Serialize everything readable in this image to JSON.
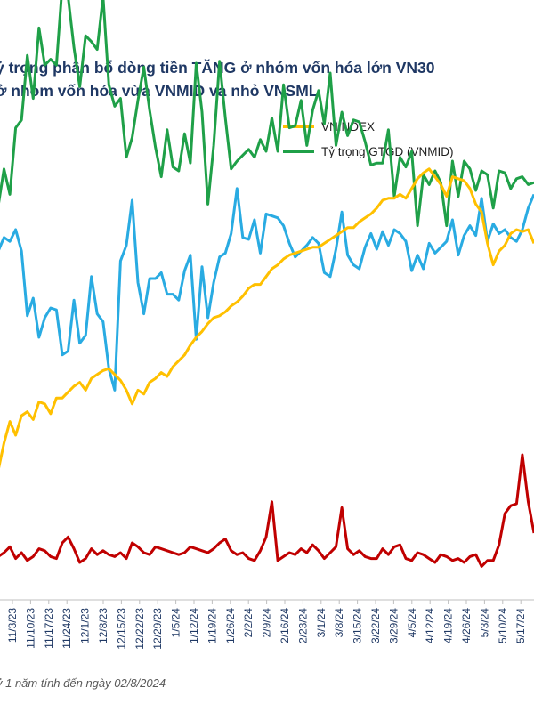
{
  "chart_data": {
    "type": "line",
    "title_lines": [
      "ỷ trọng phân bổ dòng tiền TĂNG ở nhóm vốn hóa lớn VN30",
      "ở nhóm vốn hóa vừa VNMID và nhỏ VNSML"
    ],
    "legend": [
      {
        "name": "VNINDEX",
        "color": "#ffc000"
      },
      {
        "name": "Tỷ trọng GTGD (VNMID)",
        "color": "#1fa048"
      }
    ],
    "x_tick_labels": [
      "11/3/23",
      "11/10/23",
      "11/17/23",
      "11/24/23",
      "12/1/23",
      "12/8/23",
      "12/15/23",
      "12/22/23",
      "12/29/23",
      "1/5/24",
      "1/12/24",
      "1/19/24",
      "1/26/24",
      "2/2/24",
      "2/9/24",
      "2/16/24",
      "2/23/24",
      "3/1/24",
      "3/8/24",
      "3/15/24",
      "3/22/24",
      "3/29/24",
      "4/5/24",
      "4/12/24",
      "4/19/24",
      "4/26/24",
      "5/3/24",
      "5/10/24",
      "5/17/24"
    ],
    "series": [
      {
        "name": "VNINDEX",
        "color": "#ffc000",
        "values": [
          62,
          76,
          87,
          80,
          90,
          92,
          88,
          97,
          96,
          91,
          99,
          99,
          102,
          105,
          107,
          103,
          109,
          111,
          113,
          114,
          111,
          108,
          103,
          96,
          103,
          101,
          107,
          109,
          112,
          110,
          115,
          118,
          121,
          126,
          130,
          133,
          137,
          140,
          141,
          143,
          146,
          148,
          151,
          155,
          157,
          157,
          161,
          165,
          167,
          170,
          172,
          173,
          174,
          175,
          176,
          176,
          178,
          180,
          182,
          184,
          186,
          186,
          189,
          191,
          193,
          196,
          200,
          201,
          201,
          203,
          201,
          206,
          211,
          214,
          216,
          212,
          208,
          202,
          212,
          211,
          210,
          206,
          198,
          194,
          178,
          167,
          174,
          177,
          183,
          185,
          184,
          185,
          178
        ]
      },
      {
        "name": "Tỷ trọng GTGD (VNMID)",
        "color": "#1fa048",
        "values": [
          197,
          216,
          203,
          237,
          241,
          274,
          252,
          288,
          269,
          272,
          269,
          310,
          304,
          278,
          258,
          284,
          281,
          277,
          304,
          259,
          248,
          252,
          222,
          232,
          251,
          268,
          246,
          227,
          212,
          236,
          217,
          215,
          234,
          219,
          270,
          245,
          198,
          228,
          271,
          242,
          216,
          220,
          223,
          226,
          222,
          231,
          225,
          242,
          225,
          259,
          237,
          238,
          251,
          228,
          246,
          256,
          239,
          265,
          228,
          245,
          233,
          241,
          240,
          230,
          218,
          219,
          219,
          236,
          202,
          222,
          217,
          225,
          187,
          213,
          208,
          215,
          209,
          187,
          220,
          202,
          220,
          216,
          205,
          215,
          213,
          196,
          215,
          214,
          206,
          211,
          212,
          208,
          209
        ]
      },
      {
        "name": "",
        "color": "#29abe2",
        "values": [
          174,
          181,
          179,
          185,
          174,
          141,
          150,
          130,
          140,
          145,
          144,
          121,
          123,
          149,
          127,
          131,
          161,
          142,
          138,
          114,
          103,
          169,
          177,
          200,
          158,
          142,
          160,
          160,
          163,
          152,
          152,
          149,
          164,
          172,
          129,
          166,
          140,
          158,
          171,
          173,
          183,
          206,
          181,
          180,
          190,
          173,
          193,
          192,
          191,
          187,
          178,
          171,
          174,
          177,
          181,
          178,
          163,
          161,
          175,
          194,
          172,
          167,
          165,
          176,
          183,
          175,
          184,
          177,
          185,
          183,
          179,
          164,
          172,
          165,
          178,
          173,
          176,
          179,
          190,
          172,
          182,
          187,
          182,
          201,
          179,
          188,
          183,
          185,
          181,
          179,
          185,
          196,
          203
        ]
      },
      {
        "name": "",
        "color": "#c00000",
        "values": [
          18,
          20,
          23,
          17,
          20,
          16,
          18,
          22,
          21,
          18,
          17,
          25,
          28,
          22,
          15,
          17,
          22,
          19,
          21,
          19,
          18,
          20,
          17,
          25,
          23,
          20,
          19,
          23,
          22,
          21,
          20,
          19,
          20,
          23,
          22,
          21,
          20,
          22,
          25,
          27,
          21,
          19,
          20,
          17,
          16,
          21,
          28,
          46,
          16,
          18,
          20,
          19,
          22,
          20,
          24,
          21,
          17,
          20,
          23,
          43,
          22,
          19,
          21,
          18,
          17,
          17,
          22,
          19,
          23,
          24,
          17,
          16,
          20,
          19,
          17,
          15,
          19,
          18,
          16,
          17,
          15,
          18,
          19,
          13,
          16,
          16,
          24,
          40,
          44,
          45,
          70,
          46,
          30
        ]
      }
    ]
  }
}
